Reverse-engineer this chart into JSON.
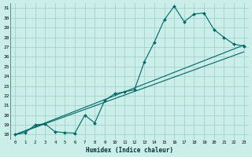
{
  "xlabel": "Humidex (Indice chaleur)",
  "bg_color": "#cceee8",
  "grid_color": "#99cccc",
  "line_color": "#006666",
  "xlim": [
    -0.5,
    23.5
  ],
  "ylim": [
    17.5,
    31.5
  ],
  "xticks": [
    0,
    1,
    2,
    3,
    4,
    5,
    6,
    7,
    8,
    9,
    10,
    11,
    12,
    13,
    14,
    15,
    16,
    17,
    18,
    19,
    20,
    21,
    22,
    23
  ],
  "yticks": [
    18,
    19,
    20,
    21,
    22,
    23,
    24,
    25,
    26,
    27,
    28,
    29,
    30,
    31
  ],
  "main_x": [
    0,
    1,
    2,
    3,
    4,
    5,
    6,
    7,
    8,
    9,
    10,
    11,
    12,
    13,
    14,
    15,
    16,
    17,
    18,
    19,
    20,
    21,
    22,
    23
  ],
  "main_y": [
    18.0,
    18.2,
    19.0,
    19.1,
    18.3,
    18.2,
    18.15,
    20.0,
    19.2,
    21.5,
    22.2,
    22.4,
    22.6,
    25.5,
    27.5,
    29.8,
    31.2,
    29.6,
    30.4,
    30.5,
    28.8,
    28.0,
    27.3,
    27.1
  ],
  "line1_x": [
    0,
    23
  ],
  "line1_y": [
    18.0,
    27.2
  ],
  "line2_x": [
    0,
    23
  ],
  "line2_y": [
    18.0,
    26.5
  ]
}
